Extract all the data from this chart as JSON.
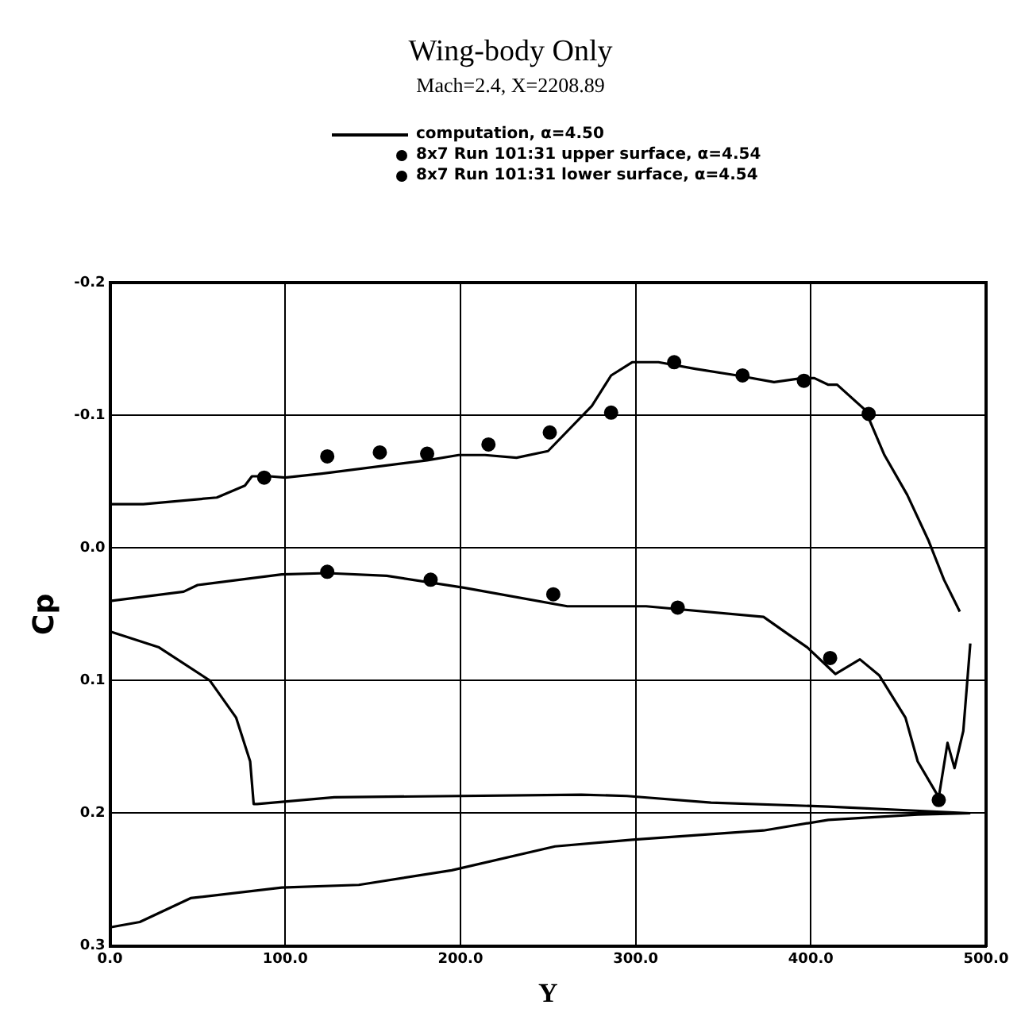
{
  "chart_data": {
    "type": "line",
    "title": "Wing-body Only",
    "subtitle": "Mach=2.4, X=2208.89",
    "xlabel": "Y",
    "ylabel": "Cp",
    "xlim": [
      0,
      500
    ],
    "xticks": [
      {
        "value": 0,
        "label": "0.0"
      },
      {
        "value": 100,
        "label": "100.0"
      },
      {
        "value": 200,
        "label": "200.0"
      },
      {
        "value": 300,
        "label": "300.0"
      },
      {
        "value": 400,
        "label": "400.0"
      },
      {
        "value": 500,
        "label": "500.0"
      }
    ],
    "ylim": [
      0.3,
      -0.2
    ],
    "yticks": [
      {
        "value": -0.2,
        "label": "-0.2"
      },
      {
        "value": -0.1,
        "label": "-0.1"
      },
      {
        "value": 0,
        "label": "0.0"
      },
      {
        "value": 0.1,
        "label": "0.1"
      },
      {
        "value": 0.2,
        "label": "0.2"
      },
      {
        "value": 0.3,
        "label": "0.3"
      }
    ],
    "grid": true,
    "legend": "top",
    "line_style": "solid",
    "series": [
      {
        "type": "line",
        "name": "computation, α=4.50",
        "color": "#000000",
        "x": [
          0,
          19,
          61,
          77,
          81,
          91,
          100,
          121,
          181,
          199,
          214,
          232,
          250,
          275,
          286,
          298,
          313,
          334,
          358,
          379,
          395,
          402,
          410,
          415,
          431,
          442,
          455,
          467,
          476,
          485
        ],
        "values": [
          -0.033,
          -0.033,
          -0.038,
          -0.047,
          -0.054,
          -0.054,
          -0.053,
          -0.056,
          -0.066,
          -0.07,
          -0.07,
          -0.068,
          -0.073,
          -0.107,
          -0.13,
          -0.14,
          -0.14,
          -0.135,
          -0.13,
          -0.125,
          -0.128,
          -0.128,
          -0.123,
          -0.123,
          -0.104,
          -0.07,
          -0.04,
          -0.006,
          0.024,
          0.048
        ]
      },
      {
        "type": "line",
        "color": "#000000",
        "x": [
          0,
          42,
          50,
          98,
          124,
          158,
          202,
          261,
          306,
          373,
          387,
          398,
          414,
          428,
          439,
          454,
          461,
          469,
          473,
          478,
          482,
          487,
          491
        ],
        "values": [
          0.04,
          0.033,
          0.028,
          0.02,
          0.019,
          0.021,
          0.03,
          0.044,
          0.044,
          0.052,
          0.065,
          0.075,
          0.095,
          0.084,
          0.096,
          0.128,
          0.161,
          0.179,
          0.188,
          0.147,
          0.166,
          0.138,
          0.072
        ]
      },
      {
        "type": "line",
        "color": "#000000",
        "x": [
          0,
          28,
          57,
          72,
          80,
          82,
          84,
          128,
          269,
          295,
          343,
          410,
          491
        ],
        "values": [
          0.063,
          0.075,
          0.1,
          0.128,
          0.161,
          0.193,
          0.193,
          0.188,
          0.186,
          0.187,
          0.192,
          0.195,
          0.2
        ]
      },
      {
        "type": "line",
        "color": "#000000",
        "x": [
          0,
          17,
          46,
          98,
          142,
          195,
          254,
          298,
          373,
          410,
          461,
          491
        ],
        "values": [
          0.286,
          0.282,
          0.264,
          0.256,
          0.254,
          0.243,
          0.225,
          0.22,
          0.213,
          0.205,
          0.201,
          0.2
        ]
      },
      {
        "type": "scatter",
        "name": "8x7 Run 101:31 upper surface, α=4.54",
        "color": "#000000",
        "marker": "circle",
        "x": [
          88,
          124,
          154,
          181,
          216,
          251,
          286,
          322,
          361,
          396,
          433
        ],
        "values": [
          -0.053,
          -0.069,
          -0.072,
          -0.071,
          -0.078,
          -0.087,
          -0.102,
          -0.14,
          -0.13,
          -0.126,
          -0.101
        ]
      },
      {
        "type": "scatter",
        "name": "8x7 Run 101:31 lower surface, α=4.54",
        "color": "#000000",
        "marker": "circle",
        "x": [
          124,
          183,
          253,
          324,
          411,
          473
        ],
        "values": [
          0.018,
          0.024,
          0.035,
          0.045,
          0.083,
          0.19
        ]
      }
    ]
  }
}
